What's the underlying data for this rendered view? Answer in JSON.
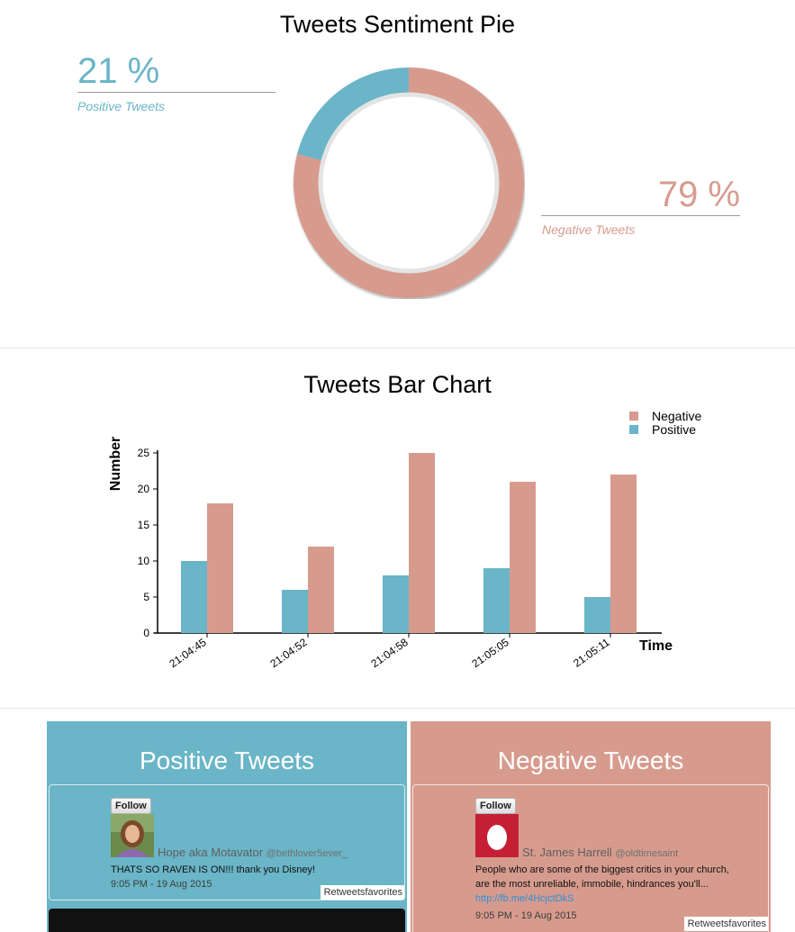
{
  "pie_section": {
    "title": "Tweets Sentiment Pie",
    "positive_value": "21 %",
    "positive_label": "Positive Tweets",
    "negative_value": "79 %",
    "negative_label": "Negative Tweets"
  },
  "bar_section": {
    "title": "Tweets Bar Chart"
  },
  "colors": {
    "positive": "#6ab5c7",
    "negative": "#d79b8e"
  },
  "chart_data": [
    {
      "type": "pie",
      "title": "Tweets Sentiment Pie",
      "slices": [
        {
          "label": "Positive Tweets",
          "value": 21
        },
        {
          "label": "Negative Tweets",
          "value": 79
        }
      ]
    },
    {
      "type": "bar",
      "title": "Tweets Bar Chart",
      "xlabel": "Time",
      "ylabel": "Number",
      "categories": [
        "21:04:45",
        "21:04:52",
        "21:04:58",
        "21:05:05",
        "21:05:11"
      ],
      "series": [
        {
          "name": "Positive",
          "values": [
            10,
            6,
            8,
            9,
            5
          ]
        },
        {
          "name": "Negative",
          "values": [
            18,
            12,
            25,
            21,
            22
          ]
        }
      ],
      "ylim": [
        0,
        25
      ],
      "yticks": [
        0,
        5,
        10,
        15,
        20,
        25
      ],
      "legend": [
        "Negative",
        "Positive"
      ],
      "legend_position": "top-right",
      "grid": false
    }
  ],
  "tweets": {
    "positive": {
      "title": "Positive Tweets",
      "items": [
        {
          "follow_label": "Follow",
          "name": "Hope aka Motavator",
          "handle": "@bethlover5ever_",
          "text": "THATS SO RAVEN IS ON!!! thank you Disney!",
          "link": "",
          "time": "9:05 PM - 19 Aug 2015",
          "actions": "Retweetsfavorites",
          "avatar": "portrait-photo"
        }
      ]
    },
    "negative": {
      "title": "Negative Tweets",
      "items": [
        {
          "follow_label": "Follow",
          "name": "St. James Harrell",
          "handle": "@oldtimesaint",
          "text": "People who are some of the biggest critics in your church, are the most unreliable, immobile, hindrances you'll...",
          "link": "http://fb.me/4HcjctDkS",
          "time": "9:05 PM - 19 Aug 2015",
          "actions": "Retweetsfavorites",
          "avatar": "egg-avatar"
        }
      ]
    }
  }
}
